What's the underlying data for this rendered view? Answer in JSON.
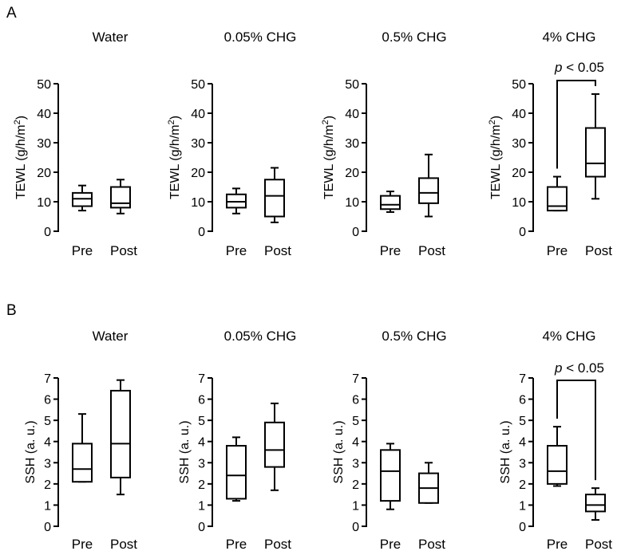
{
  "panels": [
    {
      "letter": "A"
    },
    {
      "letter": "B"
    }
  ],
  "chart_data": [
    {
      "type": "box",
      "panel": "A",
      "title": "Water",
      "ylabel": "TEWL (g/h/m",
      "ylabel_sup": "2",
      "ylabel_close": ")",
      "ylim": [
        0,
        50
      ],
      "yticks": [
        "0",
        "10",
        "20",
        "30",
        "40",
        "50"
      ],
      "categories": [
        "Pre",
        "Post"
      ],
      "boxes": [
        {
          "min": 7,
          "q1": 8.5,
          "median": 11,
          "q3": 13,
          "max": 15.5
        },
        {
          "min": 6,
          "q1": 8,
          "median": 9.5,
          "q3": 15,
          "max": 17.5
        }
      ],
      "significance": null
    },
    {
      "type": "box",
      "panel": "A",
      "title": "0.05% CHG",
      "ylabel": "TEWL (g/h/m",
      "ylabel_sup": "2",
      "ylabel_close": ")",
      "ylim": [
        0,
        50
      ],
      "yticks": [
        "0",
        "10",
        "20",
        "30",
        "40",
        "50"
      ],
      "categories": [
        "Pre",
        "Post"
      ],
      "boxes": [
        {
          "min": 6,
          "q1": 8,
          "median": 10,
          "q3": 12.5,
          "max": 14.5
        },
        {
          "min": 3,
          "q1": 5,
          "median": 12,
          "q3": 17.5,
          "max": 21.5
        }
      ],
      "significance": null
    },
    {
      "type": "box",
      "panel": "A",
      "title": "0.5% CHG",
      "ylabel": "TEWL (g/h/m",
      "ylabel_sup": "2",
      "ylabel_close": ")",
      "ylim": [
        0,
        50
      ],
      "yticks": [
        "0",
        "10",
        "20",
        "30",
        "40",
        "50"
      ],
      "categories": [
        "Pre",
        "Post"
      ],
      "boxes": [
        {
          "min": 6.5,
          "q1": 7.5,
          "median": 9,
          "q3": 12,
          "max": 13.5
        },
        {
          "min": 5,
          "q1": 9.5,
          "median": 13,
          "q3": 18,
          "max": 26
        }
      ],
      "significance": null
    },
    {
      "type": "box",
      "panel": "A",
      "title": "4% CHG",
      "ylabel": "TEWL (g/h/m",
      "ylabel_sup": "2",
      "ylabel_close": ")",
      "ylim": [
        0,
        50
      ],
      "yticks": [
        "0",
        "10",
        "20",
        "30",
        "40",
        "50"
      ],
      "categories": [
        "Pre",
        "Post"
      ],
      "boxes": [
        {
          "min": 7,
          "q1": 7,
          "median": 8.5,
          "q3": 15,
          "max": 18.5
        },
        {
          "min": 11,
          "q1": 18.5,
          "median": 23,
          "q3": 35,
          "max": 46.5
        }
      ],
      "significance": {
        "p": "p",
        "text": " < 0.05"
      }
    },
    {
      "type": "box",
      "panel": "B",
      "title": "Water",
      "ylabel": "SSH (a. u.)",
      "ylabel_sup": "",
      "ylabel_close": "",
      "ylim": [
        0,
        7
      ],
      "yticks": [
        "0",
        "1",
        "2",
        "3",
        "4",
        "5",
        "6",
        "7"
      ],
      "categories": [
        "Pre",
        "Post"
      ],
      "boxes": [
        {
          "min": 2.1,
          "q1": 2.1,
          "median": 2.7,
          "q3": 3.9,
          "max": 5.3
        },
        {
          "min": 1.5,
          "q1": 2.3,
          "median": 3.9,
          "q3": 6.4,
          "max": 6.9
        }
      ],
      "significance": null
    },
    {
      "type": "box",
      "panel": "B",
      "title": "0.05% CHG",
      "ylabel": "SSH (a. u.)",
      "ylabel_sup": "",
      "ylabel_close": "",
      "ylim": [
        0,
        7
      ],
      "yticks": [
        "0",
        "1",
        "2",
        "3",
        "4",
        "5",
        "6",
        "7"
      ],
      "categories": [
        "Pre",
        "Post"
      ],
      "boxes": [
        {
          "min": 1.2,
          "q1": 1.3,
          "median": 2.4,
          "q3": 3.8,
          "max": 4.2
        },
        {
          "min": 1.7,
          "q1": 2.8,
          "median": 3.6,
          "q3": 4.9,
          "max": 5.8
        }
      ],
      "significance": null
    },
    {
      "type": "box",
      "panel": "B",
      "title": "0.5% CHG",
      "ylabel": "SSH (a. u.)",
      "ylabel_sup": "",
      "ylabel_close": "",
      "ylim": [
        0,
        7
      ],
      "yticks": [
        "0",
        "1",
        "2",
        "3",
        "4",
        "5",
        "6",
        "7"
      ],
      "categories": [
        "Pre",
        "Post"
      ],
      "boxes": [
        {
          "min": 0.8,
          "q1": 1.2,
          "median": 2.6,
          "q3": 3.6,
          "max": 3.9
        },
        {
          "min": 1.1,
          "q1": 1.1,
          "median": 1.8,
          "q3": 2.5,
          "max": 3.0
        }
      ],
      "significance": null
    },
    {
      "type": "box",
      "panel": "B",
      "title": "4% CHG",
      "ylabel": "SSH (a. u.)",
      "ylabel_sup": "",
      "ylabel_close": "",
      "ylim": [
        0,
        7
      ],
      "yticks": [
        "0",
        "1",
        "2",
        "3",
        "4",
        "5",
        "6",
        "7"
      ],
      "categories": [
        "Pre",
        "Post"
      ],
      "boxes": [
        {
          "min": 1.9,
          "q1": 2.0,
          "median": 2.6,
          "q3": 3.8,
          "max": 4.7
        },
        {
          "min": 0.3,
          "q1": 0.7,
          "median": 1.0,
          "q3": 1.5,
          "max": 1.8
        }
      ],
      "significance": {
        "p": "p",
        "text": " < 0.05"
      }
    }
  ]
}
